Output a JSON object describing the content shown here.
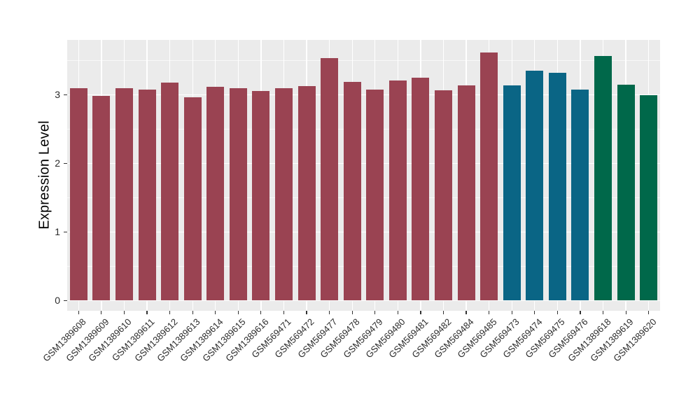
{
  "figure": {
    "background": "#FFFFFF",
    "panel_background": "#EBEBEB",
    "gridline_color": "#FFFFFF",
    "tick_mark_color": "#333333",
    "tick_label_color": "#2B2B2B",
    "axis_title_color": "#000000"
  },
  "chart_data": {
    "type": "bar",
    "title": "",
    "xlabel": "",
    "ylabel": "Expression Level",
    "ylim": [
      -0.15,
      3.8
    ],
    "yticks": [
      0,
      1,
      2,
      3
    ],
    "yminor": [
      0.5,
      1.5,
      2.5,
      3.5
    ],
    "grid": "on",
    "legend_position": "none",
    "x_label_angle": 45,
    "group_colors": {
      "group1": "#9A4352",
      "group2": "#0A6585",
      "group3": "#00684A"
    },
    "categories": [
      "GSM1389608",
      "GSM1389609",
      "GSM1389610",
      "GSM1389611",
      "GSM1389612",
      "GSM1389613",
      "GSM1389614",
      "GSM1389615",
      "GSM1389616",
      "GSM569471",
      "GSM569472",
      "GSM569477",
      "GSM569478",
      "GSM569479",
      "GSM569480",
      "GSM569481",
      "GSM569482",
      "GSM569484",
      "GSM569485",
      "GSM569473",
      "GSM569474",
      "GSM569475",
      "GSM569476",
      "GSM1389618",
      "GSM1389619",
      "GSM1389620"
    ],
    "values": [
      3.1,
      2.98,
      3.1,
      3.08,
      3.18,
      2.96,
      3.12,
      3.1,
      3.05,
      3.1,
      3.13,
      3.53,
      3.19,
      3.08,
      3.21,
      3.25,
      3.07,
      3.14,
      3.62,
      3.14,
      3.35,
      3.32,
      3.08,
      3.57,
      3.15,
      2.99
    ],
    "bar_colors": [
      "#9A4352",
      "#9A4352",
      "#9A4352",
      "#9A4352",
      "#9A4352",
      "#9A4352",
      "#9A4352",
      "#9A4352",
      "#9A4352",
      "#9A4352",
      "#9A4352",
      "#9A4352",
      "#9A4352",
      "#9A4352",
      "#9A4352",
      "#9A4352",
      "#9A4352",
      "#9A4352",
      "#9A4352",
      "#0A6585",
      "#0A6585",
      "#0A6585",
      "#0A6585",
      "#00684A",
      "#00684A",
      "#00684A"
    ]
  }
}
